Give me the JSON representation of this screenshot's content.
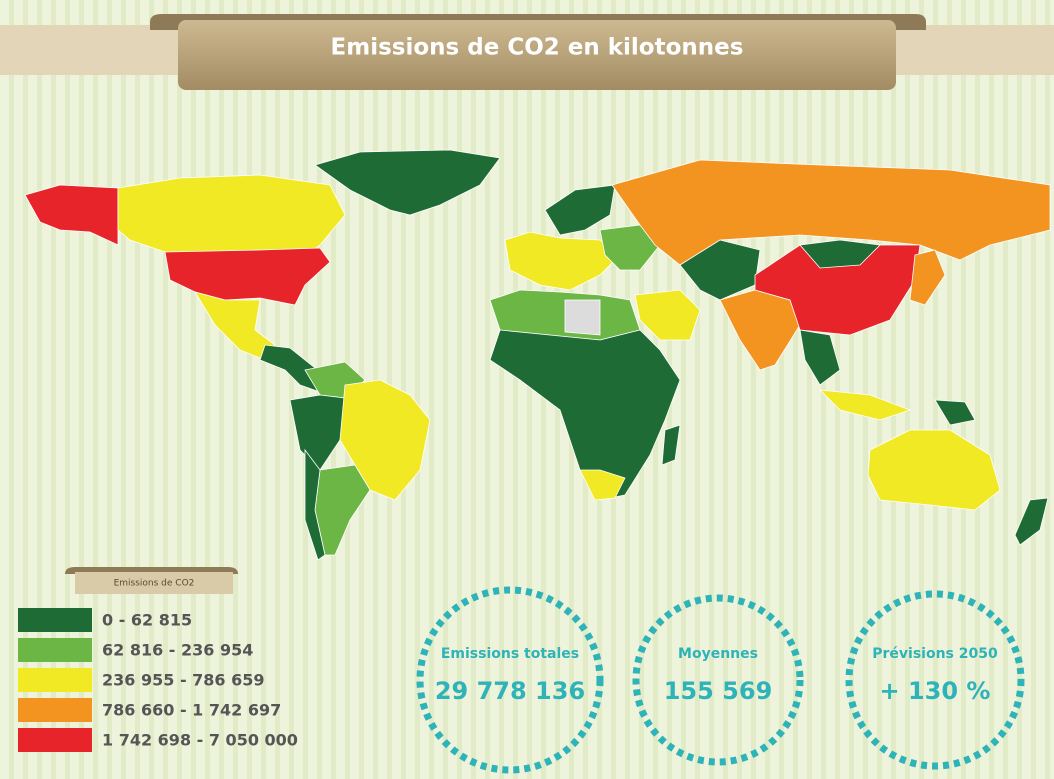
{
  "header": {
    "title": "Emissions de CO2 en kilotonnes"
  },
  "legend": {
    "title": "Emissions de CO2",
    "items": [
      {
        "label": "0 - 62 815",
        "color": "#1f6b35"
      },
      {
        "label": "62 816 - 236 954",
        "color": "#6cb646"
      },
      {
        "label": "236 955 - 786 659",
        "color": "#f1e923"
      },
      {
        "label": "786 660 - 1 742 697",
        "color": "#f39421"
      },
      {
        "label": "1 742 698 - 7 050 000",
        "color": "#e8242b"
      }
    ]
  },
  "stats": [
    {
      "label": "Emissions totales",
      "value": "29 778 136"
    },
    {
      "label": "Moyennes",
      "value": "155 569"
    },
    {
      "label": "Prévisions 2050",
      "value": "+ 130 %"
    }
  ]
}
